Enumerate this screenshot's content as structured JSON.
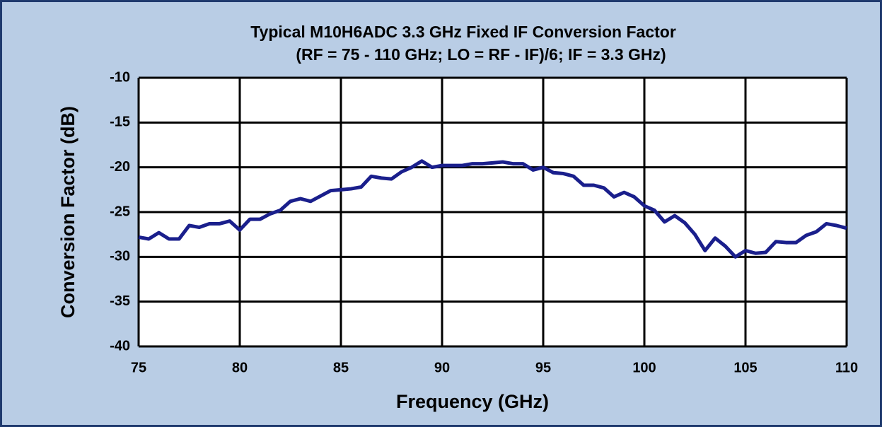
{
  "chart_data": {
    "type": "line",
    "title": "Typical M10H6ADC 3.3 GHz Fixed IF Conversion Factor",
    "subtitle": "(RF = 75 - 110 GHz; LO = RF - IF)/6;  IF = 3.3 GHz)",
    "x_label": "Frequency (GHz)",
    "y_label": "Conversion Factor (dB)",
    "x": [
      75,
      75.5,
      76,
      76.5,
      77,
      77.5,
      78,
      78.5,
      79,
      79.5,
      80,
      80.5,
      81,
      81.5,
      82,
      82.5,
      83,
      83.5,
      84,
      84.5,
      85,
      85.5,
      86,
      86.5,
      87,
      87.5,
      88,
      88.5,
      89,
      89.5,
      90,
      90.5,
      91,
      91.5,
      92,
      92.5,
      93,
      93.5,
      94,
      94.5,
      95,
      95.5,
      96,
      96.5,
      97,
      97.5,
      98,
      98.5,
      99,
      99.5,
      100,
      100.5,
      101,
      101.5,
      102,
      102.5,
      103,
      103.5,
      104,
      104.5,
      105,
      105.5,
      106,
      106.5,
      107,
      107.5,
      108,
      108.5,
      109,
      109.5,
      110
    ],
    "series": [
      {
        "name": "Conversion Factor",
        "color": "#1a1f8c",
        "values": [
          -27.8,
          -28,
          -27.3,
          -28,
          -28,
          -26.5,
          -26.7,
          -26.3,
          -26.3,
          -26,
          -27,
          -25.8,
          -25.8,
          -25.2,
          -24.8,
          -23.8,
          -23.5,
          -23.8,
          -23.2,
          -22.6,
          -22.5,
          -22.4,
          -22.2,
          -21,
          -21.2,
          -21.3,
          -20.5,
          -20,
          -19.3,
          -20,
          -19.8,
          -19.8,
          -19.8,
          -19.6,
          -19.6,
          -19.5,
          -19.4,
          -19.6,
          -19.6,
          -20.3,
          -20,
          -20.6,
          -20.7,
          -21,
          -22,
          -22,
          -22.3,
          -23.3,
          -22.8,
          -23.3,
          -24.3,
          -24.8,
          -26.1,
          -25.4,
          -26.2,
          -27.5,
          -29.3,
          -27.9,
          -28.8,
          -30,
          -29.3,
          -29.6,
          -29.5,
          -28.3,
          -28.4,
          -28.4,
          -27.6,
          -27.2,
          -26.3,
          -26.5,
          -26.8
        ]
      }
    ],
    "xlim": [
      75,
      110
    ],
    "xticks": [
      75,
      80,
      85,
      90,
      95,
      100,
      105,
      110
    ],
    "ylim": [
      -40,
      -10
    ],
    "yticks": [
      -40,
      -35,
      -30,
      -25,
      -20,
      -15,
      -10
    ],
    "grid": true
  }
}
